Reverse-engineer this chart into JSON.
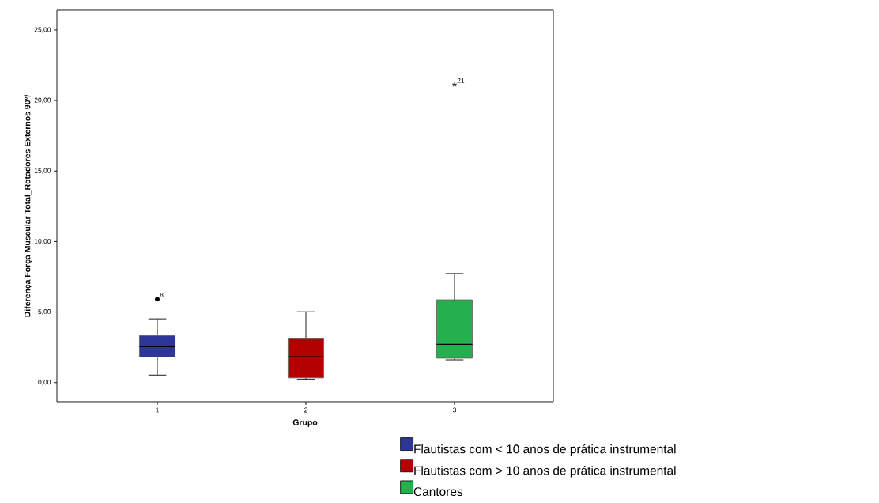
{
  "chart_data": {
    "type": "box",
    "xlabel": "Grupo",
    "ylabel": "Diferença Força Muscular Total_Rotadores Externos 90º/",
    "categories": [
      "1",
      "2",
      "3"
    ],
    "series": [
      {
        "name": "Flautistas com < 10 anos de prática instrumental",
        "color": "#2e3696",
        "boxes": [
          {
            "low": 0.53,
            "q1": 1.81,
            "median": 2.54,
            "q3": 3.34,
            "high": 4.52,
            "outliers": [
              5.92
            ]
          },
          null,
          null
        ]
      },
      {
        "name": "Flautistas com > 10 anos de prática instrumental",
        "color": "#b30000",
        "boxes": [
          null,
          {
            "low": 0.23,
            "q1": 0.33,
            "median": 1.83,
            "q3": 3.11,
            "high": 5.02
          },
          null
        ]
      },
      {
        "name": "Cantores",
        "color": "#25b04d",
        "boxes": [
          null,
          null,
          {
            "low": 1.61,
            "q1": 1.73,
            "median": 2.71,
            "q3": 5.87,
            "high": 7.73,
            "outliers": [
              21.13
            ]
          }
        ]
      }
    ],
    "ylim": [
      -1.36,
      26.4
    ],
    "yticks": [
      {
        "value": 0,
        "label": "0,00"
      },
      {
        "value": 5,
        "label": "5,00"
      },
      {
        "value": 10,
        "label": "10,00"
      },
      {
        "value": 15,
        "label": "15,00"
      },
      {
        "value": 20,
        "label": "20,00"
      },
      {
        "value": 25,
        "label": "25,00"
      }
    ],
    "annotations": [
      "8",
      "21"
    ],
    "legend": "bottom right",
    "grid": false
  }
}
